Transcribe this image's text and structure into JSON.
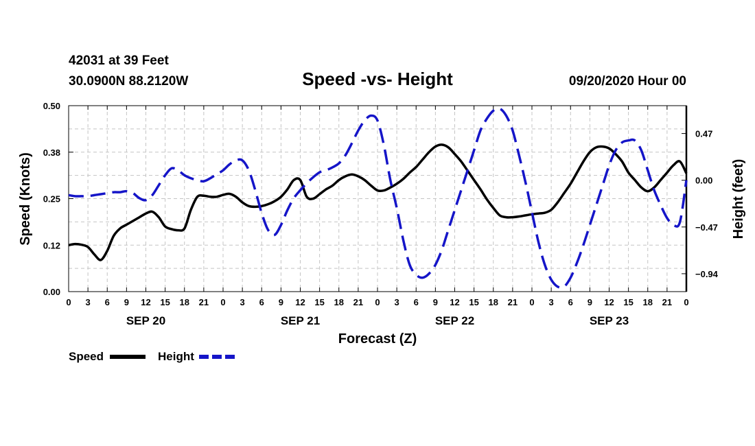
{
  "header": {
    "station": "42031 at 39 Feet",
    "coords": "30.0900N 88.2120W",
    "title": "Speed -vs- Height",
    "date": "09/20/2020 Hour 00"
  },
  "chart_data": {
    "type": "line",
    "title": "Speed -vs- Height",
    "xlabel": "Forecast (Z)",
    "ylabel": "Speed (Knots)",
    "y2label": "Height (feet)",
    "xlim": [
      0,
      96
    ],
    "ylim": [
      0,
      0.5
    ],
    "y2lim": [
      -1.12,
      0.75
    ],
    "grid": true,
    "x_tick_labels": [
      "0",
      "3",
      "6",
      "9",
      "12",
      "15",
      "18",
      "21",
      "0",
      "3",
      "6",
      "9",
      "12",
      "15",
      "18",
      "21",
      "0",
      "3",
      "6",
      "9",
      "12",
      "15",
      "18",
      "21",
      "0",
      "3",
      "6",
      "9",
      "12",
      "15",
      "18",
      "21",
      "0"
    ],
    "date_labels": [
      {
        "hour": 12,
        "label": "SEP 20"
      },
      {
        "hour": 36,
        "label": "SEP 21"
      },
      {
        "hour": 60,
        "label": "SEP 22"
      },
      {
        "hour": 84,
        "label": "SEP 23"
      }
    ],
    "y_ticks": [
      {
        "value": 0.0,
        "label": "0.00"
      },
      {
        "value": 0.125,
        "label": "0.12"
      },
      {
        "value": 0.25,
        "label": "0.25"
      },
      {
        "value": 0.375,
        "label": "0.38"
      },
      {
        "value": 0.5,
        "label": "0.50"
      }
    ],
    "y2_ticks": [
      {
        "value": 0.47,
        "label": "0.47"
      },
      {
        "value": 0.0,
        "label": "0.00"
      },
      {
        "value": -0.47,
        "label": "-0.47"
      },
      {
        "value": -0.94,
        "label": "-0.94"
      }
    ],
    "series": [
      {
        "name": "Speed",
        "axis": "left",
        "color": "#000000",
        "style": "solid",
        "x": [
          0,
          1,
          2,
          3,
          4,
          5,
          6,
          7,
          8,
          9,
          10,
          11,
          12,
          13,
          14,
          15,
          16,
          17,
          18,
          19,
          20,
          21,
          22,
          23,
          24,
          25,
          26,
          27,
          28,
          29,
          30,
          31,
          32,
          33,
          34,
          35,
          36,
          37,
          38,
          39,
          40,
          41,
          42,
          43,
          44,
          45,
          46,
          47,
          48,
          49,
          50,
          51,
          52,
          53,
          54,
          55,
          56,
          57,
          58,
          59,
          60,
          61,
          62,
          63,
          64,
          65,
          66,
          67,
          68,
          69,
          70,
          71,
          72,
          73,
          74,
          75,
          76,
          77,
          78,
          79,
          80,
          81,
          82,
          83,
          84,
          85,
          86,
          87,
          88,
          89,
          90,
          91,
          92,
          93,
          94,
          95,
          96
        ],
        "values": [
          0.125,
          0.128,
          0.126,
          0.12,
          0.1,
          0.085,
          0.11,
          0.15,
          0.17,
          0.18,
          0.19,
          0.2,
          0.21,
          0.215,
          0.2,
          0.175,
          0.168,
          0.165,
          0.17,
          0.22,
          0.255,
          0.258,
          0.255,
          0.255,
          0.26,
          0.263,
          0.255,
          0.24,
          0.23,
          0.228,
          0.23,
          0.235,
          0.243,
          0.255,
          0.275,
          0.3,
          0.3,
          0.255,
          0.25,
          0.262,
          0.275,
          0.285,
          0.3,
          0.31,
          0.315,
          0.31,
          0.3,
          0.285,
          0.272,
          0.272,
          0.28,
          0.29,
          0.303,
          0.32,
          0.335,
          0.355,
          0.375,
          0.39,
          0.395,
          0.388,
          0.37,
          0.35,
          0.325,
          0.3,
          0.275,
          0.248,
          0.225,
          0.205,
          0.2,
          0.2,
          0.202,
          0.205,
          0.208,
          0.21,
          0.212,
          0.22,
          0.24,
          0.265,
          0.29,
          0.32,
          0.35,
          0.375,
          0.388,
          0.39,
          0.385,
          0.37,
          0.35,
          0.32,
          0.3,
          0.28,
          0.27,
          0.28,
          0.3,
          0.32,
          0.34,
          0.35,
          0.318
        ]
      },
      {
        "name": "Height",
        "axis": "right",
        "color": "#1515c8",
        "style": "dashed",
        "x": [
          0,
          1,
          2,
          3,
          4,
          5,
          6,
          7,
          8,
          9,
          10,
          11,
          12,
          13,
          14,
          15,
          16,
          17,
          18,
          19,
          20,
          21,
          22,
          23,
          24,
          25,
          26,
          27,
          28,
          29,
          30,
          31,
          32,
          33,
          34,
          35,
          36,
          37,
          38,
          39,
          40,
          41,
          42,
          43,
          44,
          45,
          46,
          47,
          48,
          49,
          50,
          51,
          52,
          53,
          54,
          55,
          56,
          57,
          58,
          59,
          60,
          61,
          62,
          63,
          64,
          65,
          66,
          67,
          68,
          69,
          70,
          71,
          72,
          73,
          74,
          75,
          76,
          77,
          78,
          79,
          80,
          81,
          82,
          83,
          84,
          85,
          86,
          87,
          88,
          89,
          90,
          91,
          92,
          93,
          94,
          95,
          96
        ],
        "values": [
          -0.15,
          -0.16,
          -0.16,
          -0.16,
          -0.15,
          -0.14,
          -0.13,
          -0.12,
          -0.12,
          -0.11,
          -0.13,
          -0.18,
          -0.2,
          -0.15,
          -0.05,
          0.05,
          0.12,
          0.1,
          0.05,
          0.02,
          0.0,
          -0.01,
          0.02,
          0.06,
          0.1,
          0.16,
          0.2,
          0.2,
          0.1,
          -0.1,
          -0.33,
          -0.5,
          -0.55,
          -0.45,
          -0.3,
          -0.18,
          -0.1,
          -0.03,
          0.03,
          0.08,
          0.1,
          0.13,
          0.17,
          0.25,
          0.37,
          0.5,
          0.6,
          0.65,
          0.6,
          0.35,
          0.0,
          -0.28,
          -0.6,
          -0.85,
          -0.95,
          -0.98,
          -0.94,
          -0.85,
          -0.7,
          -0.5,
          -0.3,
          -0.1,
          0.1,
          0.3,
          0.5,
          0.62,
          0.7,
          0.72,
          0.65,
          0.5,
          0.25,
          -0.02,
          -0.32,
          -0.62,
          -0.85,
          -1.0,
          -1.07,
          -1.07,
          -0.98,
          -0.83,
          -0.65,
          -0.45,
          -0.25,
          -0.05,
          0.15,
          0.3,
          0.38,
          0.4,
          0.4,
          0.3,
          0.1,
          -0.1,
          -0.25,
          -0.38,
          -0.45,
          -0.42,
          0.0
        ]
      }
    ],
    "legend": [
      {
        "label": "Speed",
        "color": "#000000",
        "style": "solid"
      },
      {
        "label": "Height",
        "color": "#1515c8",
        "style": "dashed"
      }
    ]
  }
}
